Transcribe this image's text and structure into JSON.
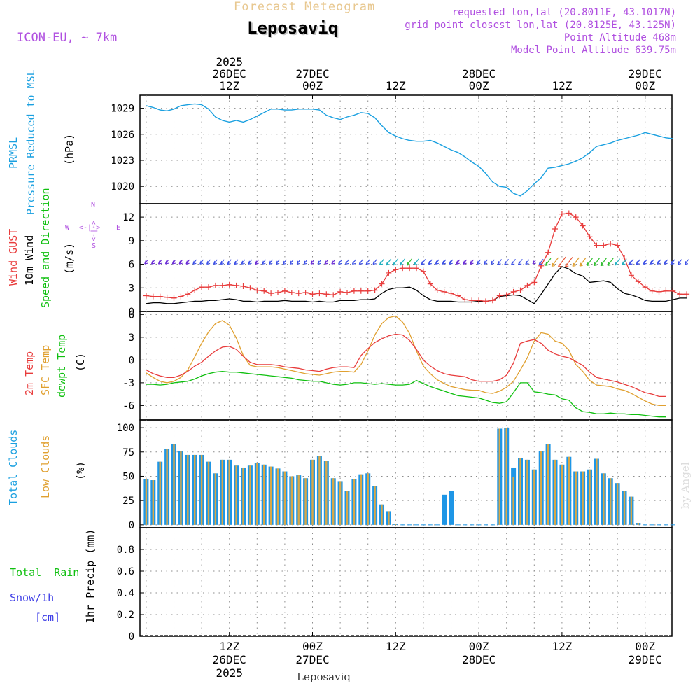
{
  "header": {
    "title": "Forecast Meteogram",
    "location": "Leposaviq",
    "model": "ICON-EU, ~ 7km",
    "requested": "requested lon,lat (20.8011E, 43.1017N)",
    "grid_point": "grid point closest lon,lat (20.8125E, 43.125N)",
    "point_altitude": "Point Altitude 468m",
    "model_altitude": "Model Point Altitude 639.75m"
  },
  "footer": {
    "location": "Leposaviq",
    "credit": "by Angel"
  },
  "time_axis": {
    "top_labels": [
      {
        "hour": 12,
        "lines": [
          "2025",
          "26DEC",
          "12Z"
        ]
      },
      {
        "hour": 24,
        "lines": [
          "27DEC",
          "00Z"
        ]
      },
      {
        "hour": 36,
        "lines": [
          "12Z"
        ]
      },
      {
        "hour": 48,
        "lines": [
          "28DEC",
          "00Z"
        ]
      },
      {
        "hour": 60,
        "lines": [
          "12Z"
        ]
      },
      {
        "hour": 72,
        "lines": [
          "29DEC",
          "00Z"
        ]
      }
    ],
    "bottom_labels": [
      {
        "hour": 12,
        "lines": [
          "12Z",
          "26DEC",
          "2025"
        ]
      },
      {
        "hour": 24,
        "lines": [
          "00Z",
          "27DEC"
        ]
      },
      {
        "hour": 36,
        "lines": [
          "12Z"
        ]
      },
      {
        "hour": 48,
        "lines": [
          "00Z",
          "28DEC"
        ]
      },
      {
        "hour": 60,
        "lines": [
          "12Z"
        ]
      },
      {
        "hour": 72,
        "lines": [
          "00Z",
          "29DEC"
        ]
      }
    ]
  },
  "panel_labels": {
    "pressure": {
      "name1": "PRMSL",
      "name2": "Pressure Reduced to MSL",
      "unit": "(hPa)"
    },
    "wind": {
      "gust": "Wind GUST",
      "ten_m": "10m Wind",
      "speed_dir": "Speed and Direction",
      "unit": "(m/s)",
      "compass": {
        "n": "N",
        "s": "S",
        "w": "W",
        "e": "E",
        "ns": "<-|->",
        "we": "<-|->"
      }
    },
    "temp": {
      "t2m": "2m Temp",
      "sfc": "SFC Temp",
      "dewpt": "dewpt Temp",
      "unit": "(C)"
    },
    "clouds": {
      "total": "Total Clouds",
      "low": "Low Clouds",
      "unit": "(%)"
    },
    "precip": {
      "rain": "Total  Rain",
      "snow": "Snow/1h",
      "snow_unit": "[cm]",
      "unit": "1hr Precip (mm)"
    }
  },
  "colors": {
    "pressure": "#1aa0e0",
    "gust": "#e83c3c",
    "wind10m": "#000000",
    "t2m": "#e83c3c",
    "sfc": "#e0a030",
    "dewpt": "#10c010",
    "total_cloud": "#1e96e6",
    "low_cloud": "#d8a848",
    "rain": "#10c010",
    "snow": "#3c3ce6",
    "model": "#b050e0",
    "title": "#e8c890"
  },
  "chart_data": [
    {
      "type": "line",
      "title": "PRMSL Pressure Reduced to MSL",
      "ylabel": "(hPa)",
      "x_range_hours": [
        0,
        77
      ],
      "ylim": [
        1018,
        1030.5
      ],
      "yticks": [
        1020,
        1023,
        1026,
        1029
      ],
      "x_step_hours": 1,
      "series": [
        {
          "name": "PRMSL",
          "values": [
            1029.3,
            1029.1,
            1028.8,
            1028.7,
            1028.9,
            1029.3,
            1029.4,
            1029.5,
            1029.4,
            1028.9,
            1028.0,
            1027.6,
            1027.4,
            1027.6,
            1027.4,
            1027.7,
            1028.1,
            1028.5,
            1028.9,
            1028.9,
            1028.8,
            1028.8,
            1028.9,
            1028.9,
            1028.9,
            1028.8,
            1028.2,
            1027.9,
            1027.7,
            1028.0,
            1028.2,
            1028.5,
            1028.4,
            1027.9,
            1027.0,
            1026.2,
            1025.8,
            1025.5,
            1025.3,
            1025.2,
            1025.2,
            1025.3,
            1025.0,
            1024.6,
            1024.2,
            1023.9,
            1023.4,
            1022.8,
            1022.3,
            1021.5,
            1020.5,
            1020.0,
            1019.9,
            1019.2,
            1018.9,
            1019.5,
            1020.3,
            1021.0,
            1022.1,
            1022.2,
            1022.4,
            1022.6,
            1022.9,
            1023.3,
            1023.9,
            1024.6,
            1024.8,
            1025.0,
            1025.3,
            1025.5,
            1025.7,
            1025.9,
            1026.2,
            1026.0,
            1025.8,
            1025.6,
            1025.5
          ]
        }
      ]
    },
    {
      "type": "line",
      "title": "Wind GUST / 10m Wind Speed and Direction",
      "ylabel": "(m/s)",
      "x_range_hours": [
        0,
        77
      ],
      "ylim": [
        0,
        13.7
      ],
      "yticks": [
        0,
        3,
        6,
        9,
        12
      ],
      "series": [
        {
          "name": "Wind GUST",
          "values": [
            2.0,
            1.9,
            1.9,
            1.8,
            1.7,
            1.9,
            2.2,
            2.7,
            3.1,
            3.1,
            3.3,
            3.3,
            3.4,
            3.3,
            3.2,
            3.0,
            2.7,
            2.6,
            2.3,
            2.4,
            2.6,
            2.4,
            2.3,
            2.4,
            2.2,
            2.3,
            2.2,
            2.1,
            2.5,
            2.4,
            2.6,
            2.6,
            2.6,
            2.7,
            3.5,
            4.9,
            5.3,
            5.5,
            5.5,
            5.5,
            5.1,
            3.5,
            2.7,
            2.5,
            2.3,
            2.0,
            1.5,
            1.4,
            1.4,
            1.3,
            1.4,
            2.0,
            2.1,
            2.5,
            2.7,
            3.3,
            3.7,
            5.8,
            7.5,
            10.5,
            12.4,
            12.5,
            12.0,
            10.9,
            9.5,
            8.4,
            8.4,
            8.6,
            8.4,
            6.8,
            4.6,
            3.8,
            3.1,
            2.6,
            2.5,
            2.6,
            2.6,
            2.2,
            2.2
          ]
        },
        {
          "name": "10m Wind",
          "values": [
            1.0,
            1.1,
            1.1,
            1.0,
            1.0,
            1.1,
            1.2,
            1.3,
            1.3,
            1.4,
            1.4,
            1.5,
            1.6,
            1.5,
            1.3,
            1.3,
            1.2,
            1.3,
            1.3,
            1.3,
            1.4,
            1.3,
            1.3,
            1.3,
            1.2,
            1.3,
            1.2,
            1.2,
            1.4,
            1.4,
            1.4,
            1.5,
            1.5,
            1.6,
            2.3,
            2.8,
            3.0,
            3.0,
            3.1,
            2.7,
            2.0,
            1.5,
            1.3,
            1.3,
            1.3,
            1.2,
            1.2,
            1.2,
            1.3,
            1.3,
            1.4,
            1.9,
            2.0,
            2.1,
            2.0,
            1.5,
            1.0,
            2.2,
            3.5,
            4.8,
            5.7,
            5.4,
            4.8,
            4.5,
            3.7,
            3.8,
            3.9,
            3.7,
            2.9,
            2.3,
            2.1,
            1.8,
            1.4,
            1.3,
            1.3,
            1.3,
            1.5,
            1.7,
            1.7
          ]
        }
      ],
      "direction_barbs": "drawn at y=6 m/s level, colored by speed"
    },
    {
      "type": "line",
      "title": "2m Temp / SFC Temp / dewpt Temp",
      "ylabel": "(C)",
      "x_range_hours": [
        0,
        77
      ],
      "ylim": [
        -7.9,
        6.4
      ],
      "yticks": [
        -6,
        -3,
        0,
        3,
        6
      ],
      "series": [
        {
          "name": "2m Temp",
          "values": [
            -1.3,
            -1.8,
            -2.1,
            -2.3,
            -2.3,
            -2.0,
            -1.5,
            -0.8,
            -0.3,
            0.5,
            1.2,
            1.7,
            1.8,
            1.4,
            0.5,
            -0.3,
            -0.6,
            -0.6,
            -0.6,
            -0.7,
            -0.9,
            -1.0,
            -1.1,
            -1.3,
            -1.4,
            -1.5,
            -1.2,
            -1.0,
            -0.9,
            -0.9,
            -1.0,
            0.6,
            1.5,
            2.3,
            2.8,
            3.2,
            3.4,
            3.3,
            2.6,
            1.4,
            0.0,
            -0.8,
            -1.4,
            -1.8,
            -2.0,
            -2.1,
            -2.2,
            -2.6,
            -2.8,
            -2.8,
            -2.8,
            -2.6,
            -2.0,
            -0.4,
            2.2,
            2.5,
            2.7,
            2.2,
            1.3,
            0.8,
            0.5,
            0.3,
            -0.2,
            -0.7,
            -1.6,
            -2.3,
            -2.5,
            -2.7,
            -2.9,
            -3.2,
            -3.5,
            -3.9,
            -4.3,
            -4.5,
            -4.8,
            -4.8
          ]
        },
        {
          "name": "SFC Temp",
          "values": [
            -1.7,
            -2.3,
            -2.8,
            -3.0,
            -2.8,
            -2.3,
            -1.3,
            0.4,
            2.2,
            3.7,
            4.8,
            5.2,
            4.6,
            2.9,
            0.6,
            -0.7,
            -0.9,
            -0.9,
            -0.9,
            -1.0,
            -1.2,
            -1.4,
            -1.6,
            -1.8,
            -1.9,
            -2.0,
            -1.8,
            -1.6,
            -1.5,
            -1.5,
            -1.6,
            -0.6,
            1.2,
            3.3,
            4.8,
            5.6,
            5.8,
            5.0,
            3.5,
            1.2,
            -0.8,
            -1.8,
            -2.6,
            -3.1,
            -3.5,
            -3.7,
            -3.9,
            -4.0,
            -4.0,
            -4.3,
            -4.4,
            -4.1,
            -3.6,
            -2.8,
            -1.3,
            0.3,
            2.5,
            3.6,
            3.4,
            2.5,
            2.2,
            1.3,
            -0.6,
            -1.5,
            -2.7,
            -3.3,
            -3.4,
            -3.5,
            -3.8,
            -4.0,
            -4.4,
            -4.9,
            -5.4,
            -5.8,
            -6.0,
            -6.0
          ]
        },
        {
          "name": "dewpt Temp",
          "values": [
            -3.2,
            -3.2,
            -3.3,
            -3.2,
            -3.0,
            -2.9,
            -2.8,
            -2.5,
            -2.1,
            -1.8,
            -1.6,
            -1.5,
            -1.6,
            -1.6,
            -1.7,
            -1.8,
            -1.9,
            -2.0,
            -2.1,
            -2.2,
            -2.3,
            -2.4,
            -2.6,
            -2.7,
            -2.8,
            -2.8,
            -3.0,
            -3.2,
            -3.3,
            -3.2,
            -3.0,
            -3.0,
            -3.1,
            -3.2,
            -3.1,
            -3.2,
            -3.3,
            -3.3,
            -3.2,
            -2.7,
            -3.1,
            -3.5,
            -3.8,
            -4.1,
            -4.4,
            -4.7,
            -4.8,
            -4.9,
            -5.0,
            -5.3,
            -5.6,
            -5.7,
            -5.5,
            -4.3,
            -3.0,
            -3.0,
            -4.2,
            -4.3,
            -4.5,
            -4.6,
            -5.1,
            -5.3,
            -6.3,
            -6.8,
            -6.9,
            -7.1,
            -7.1,
            -7.0,
            -7.1,
            -7.1,
            -7.2,
            -7.2,
            -7.3,
            -7.4,
            -7.5,
            -7.5
          ]
        }
      ]
    },
    {
      "type": "bar",
      "title": "Total Clouds / Low Clouds",
      "ylabel": "(%)",
      "x_range_hours": [
        0,
        77
      ],
      "ylim": [
        -3,
        108
      ],
      "yticks": [
        0,
        25,
        50,
        75,
        100
      ],
      "series": [
        {
          "name": "Total Clouds",
          "values": [
            47,
            46,
            65,
            78,
            83,
            76,
            72,
            72,
            72,
            65,
            53,
            67,
            67,
            61,
            59,
            61,
            64,
            62,
            60,
            58,
            55,
            50,
            51,
            48,
            67,
            71,
            66,
            48,
            45,
            35,
            47,
            52,
            53,
            40,
            21,
            14,
            1,
            0,
            0,
            0,
            0,
            0,
            0,
            31,
            35,
            0,
            0,
            0,
            0,
            0,
            0,
            99,
            100,
            59,
            69,
            67,
            57,
            76,
            83,
            67,
            62,
            70,
            55,
            55,
            57,
            68,
            53,
            48,
            43,
            35,
            29,
            2,
            0,
            0,
            0,
            0,
            0
          ]
        },
        {
          "name": "Low Clouds",
          "values": [
            47,
            46,
            65,
            78,
            83,
            76,
            72,
            72,
            72,
            65,
            53,
            67,
            67,
            61,
            59,
            61,
            64,
            62,
            60,
            58,
            55,
            50,
            51,
            48,
            67,
            71,
            66,
            48,
            45,
            35,
            47,
            52,
            53,
            40,
            21,
            14,
            1,
            0,
            0,
            0,
            0,
            0,
            0,
            0,
            0,
            0,
            0,
            0,
            0,
            0,
            0,
            99,
            100,
            49,
            69,
            67,
            57,
            76,
            83,
            67,
            62,
            70,
            55,
            55,
            57,
            68,
            53,
            48,
            43,
            35,
            29,
            2,
            0,
            0,
            0,
            0,
            0
          ]
        }
      ]
    },
    {
      "type": "bar",
      "title": "1hr Precip",
      "ylabel": "1hr Precip (mm)",
      "x_range_hours": [
        0,
        77
      ],
      "ylim": [
        0,
        1
      ],
      "yticks": [
        0,
        0.2,
        0.4,
        0.6,
        0.8
      ],
      "series": [
        {
          "name": "Total Rain",
          "values": []
        },
        {
          "name": "Snow/1h",
          "values": []
        }
      ]
    }
  ]
}
